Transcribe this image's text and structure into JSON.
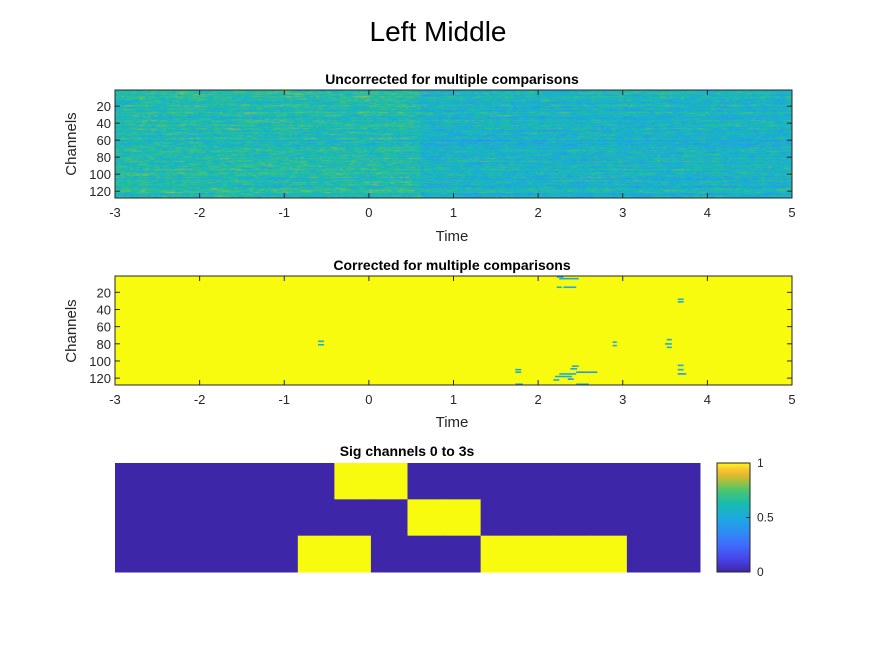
{
  "figure": {
    "title": "Left Middle"
  },
  "chart_data": [
    {
      "type": "heatmap",
      "title": "Uncorrected for multiple comparisons",
      "xlabel": "Time",
      "ylabel": "Channels",
      "xlim": [
        -3,
        5
      ],
      "ylim": [
        1,
        128
      ],
      "xticks": [
        "-3",
        "-2",
        "-1",
        "0",
        "1",
        "2",
        "3",
        "4",
        "5"
      ],
      "yticks": [
        "20",
        "40",
        "60",
        "80",
        "100",
        "120"
      ],
      "y_reversed": true,
      "colormap": "parula",
      "value_range": [
        0,
        1
      ],
      "description_values": "dense random-like p-values across all 128 channels and time, mostly 0.4-0.8"
    },
    {
      "type": "heatmap",
      "title": "Corrected for multiple comparisons",
      "xlabel": "Time",
      "ylabel": "Channels",
      "xlim": [
        -3,
        5
      ],
      "ylim": [
        1,
        128
      ],
      "xticks": [
        "-3",
        "-2",
        "-1",
        "0",
        "1",
        "2",
        "3",
        "4",
        "5"
      ],
      "yticks": [
        "20",
        "40",
        "60",
        "80",
        "100",
        "120"
      ],
      "y_reversed": true,
      "colormap": "parula",
      "value_range": [
        0,
        1
      ],
      "background_value": 1,
      "sparse_low_values": [
        {
          "t0": 2.22,
          "t1": 2.3,
          "ch": 2,
          "v": 0.55
        },
        {
          "t0": 2.25,
          "t1": 2.48,
          "ch": 4,
          "v": 0.5
        },
        {
          "t0": 2.3,
          "t1": 2.45,
          "ch": 14,
          "v": 0.5
        },
        {
          "t0": 2.22,
          "t1": 2.28,
          "ch": 14,
          "v": 0.6
        },
        {
          "t0": 3.65,
          "t1": 3.72,
          "ch": 28,
          "v": 0.6
        },
        {
          "t0": 3.65,
          "t1": 3.72,
          "ch": 31,
          "v": 0.5
        },
        {
          "t0": -0.6,
          "t1": -0.53,
          "ch": 77,
          "v": 0.55
        },
        {
          "t0": -0.6,
          "t1": -0.53,
          "ch": 81,
          "v": 0.5
        },
        {
          "t0": 2.88,
          "t1": 2.93,
          "ch": 78,
          "v": 0.6
        },
        {
          "t0": 2.88,
          "t1": 2.93,
          "ch": 82,
          "v": 0.5
        },
        {
          "t0": 3.52,
          "t1": 3.58,
          "ch": 75,
          "v": 0.55
        },
        {
          "t0": 3.5,
          "t1": 3.58,
          "ch": 80,
          "v": 0.5
        },
        {
          "t0": 3.52,
          "t1": 3.58,
          "ch": 84,
          "v": 0.6
        },
        {
          "t0": 2.4,
          "t1": 2.48,
          "ch": 106,
          "v": 0.5
        },
        {
          "t0": 2.38,
          "t1": 2.46,
          "ch": 109,
          "v": 0.55
        },
        {
          "t0": 2.45,
          "t1": 2.7,
          "ch": 113,
          "v": 0.4
        },
        {
          "t0": 2.25,
          "t1": 2.45,
          "ch": 115,
          "v": 0.5
        },
        {
          "t0": 2.2,
          "t1": 2.4,
          "ch": 118,
          "v": 0.55
        },
        {
          "t0": 2.35,
          "t1": 2.42,
          "ch": 121,
          "v": 0.4
        },
        {
          "t0": 2.18,
          "t1": 2.25,
          "ch": 122,
          "v": 0.5
        },
        {
          "t0": 1.73,
          "t1": 1.8,
          "ch": 110,
          "v": 0.5
        },
        {
          "t0": 1.73,
          "t1": 1.8,
          "ch": 113,
          "v": 0.55
        },
        {
          "t0": 1.73,
          "t1": 1.82,
          "ch": 127,
          "v": 0.4
        },
        {
          "t0": 2.45,
          "t1": 2.6,
          "ch": 127,
          "v": 0.5
        },
        {
          "t0": 3.65,
          "t1": 3.72,
          "ch": 105,
          "v": 0.5
        },
        {
          "t0": 3.65,
          "t1": 3.72,
          "ch": 110,
          "v": 0.55
        },
        {
          "t0": 3.65,
          "t1": 3.75,
          "ch": 115,
          "v": 0.4
        }
      ]
    },
    {
      "type": "heatmap",
      "title": "Sig channels 0 to 3s",
      "colormap": "parula",
      "value_range": [
        0,
        1
      ],
      "colorbar": {
        "ticks": [
          "0",
          "0.5",
          "1"
        ]
      },
      "rows": 3,
      "cols": 16,
      "values": [
        [
          0,
          0,
          0,
          0,
          0,
          0,
          1,
          1,
          0,
          0,
          0,
          0,
          0,
          0,
          0,
          0
        ],
        [
          0,
          0,
          0,
          0,
          0,
          0,
          0,
          0,
          1,
          1,
          0,
          0,
          0,
          0,
          0,
          0
        ],
        [
          0,
          0,
          0,
          0,
          0,
          1,
          1,
          0,
          0,
          0,
          1,
          1,
          1,
          1,
          0,
          0
        ]
      ],
      "colors": {
        "high": "#F9FB0E",
        "low": "#3E26A8"
      }
    }
  ]
}
